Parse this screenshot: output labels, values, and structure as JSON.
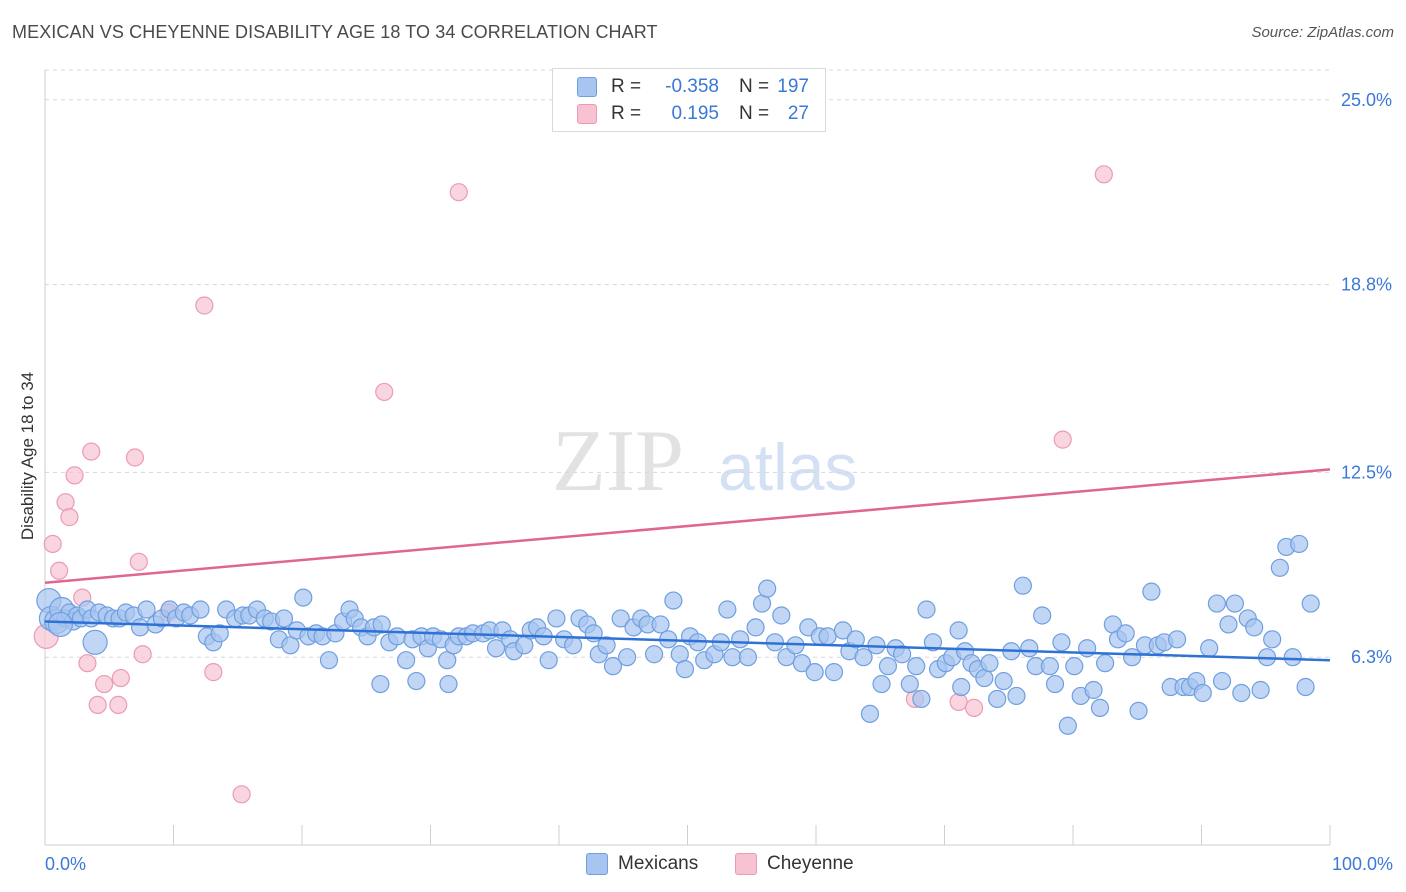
{
  "header": {
    "title": "MEXICAN VS CHEYENNE DISABILITY AGE 18 TO 34 CORRELATION CHART",
    "source": "Source: ZipAtlas.com"
  },
  "watermark": {
    "part1": "ZIP",
    "part2": "atlas"
  },
  "stats": {
    "mexicans": {
      "r_label": "R =",
      "r_value": "-0.358",
      "n_label": "N =",
      "n_value": "197"
    },
    "cheyenne": {
      "r_label": "R =",
      "r_value": "0.195",
      "n_label": "N =",
      "n_value": "27"
    }
  },
  "legend": {
    "mexicans": "Mexicans",
    "cheyenne": "Cheyenne"
  },
  "colors": {
    "mexicans_fill": "#a7c5f0",
    "mexicans_stroke": "#6f9fe0",
    "mexicans_line": "#2f72d6",
    "cheyenne_fill": "#f7c3d3",
    "cheyenne_stroke": "#ec9ab5",
    "cheyenne_line": "#e0658f",
    "tick_label": "#3b78d8",
    "grid": "#d8d8d8"
  },
  "chart_data": {
    "type": "scatter",
    "title": "MEXICAN VS CHEYENNE DISABILITY AGE 18 TO 34 CORRELATION CHART",
    "xlabel": "",
    "ylabel": "Disability Age 18 to 34",
    "xlim": [
      0,
      100
    ],
    "ylim": [
      0,
      26
    ],
    "x_tick_labels": [
      "0.0%",
      "100.0%"
    ],
    "x_tick_positions": [
      0,
      10,
      20,
      30,
      40,
      50,
      60,
      70,
      80,
      90,
      100
    ],
    "y_ticks": [
      6.3,
      12.5,
      18.8,
      25.0
    ],
    "y_tick_labels": [
      "6.3%",
      "12.5%",
      "18.8%",
      "25.0%"
    ],
    "grid": "horizontal dashed",
    "series": [
      {
        "name": "Mexicans",
        "trend": {
          "x": [
            0,
            100
          ],
          "y": [
            7.5,
            6.2
          ]
        },
        "points": [
          [
            0.3,
            8.2
          ],
          [
            0.5,
            7.6
          ],
          [
            0.9,
            7.5
          ],
          [
            1.3,
            7.9
          ],
          [
            1.6,
            7.6
          ],
          [
            1.9,
            7.8
          ],
          [
            2.2,
            7.5
          ],
          [
            2.5,
            7.7
          ],
          [
            2.8,
            7.6
          ],
          [
            3.3,
            7.9
          ],
          [
            3.6,
            7.6
          ],
          [
            4.2,
            7.8
          ],
          [
            4.8,
            7.7
          ],
          [
            5.3,
            7.6
          ],
          [
            5.8,
            7.6
          ],
          [
            6.3,
            7.8
          ],
          [
            6.9,
            7.7
          ],
          [
            7.4,
            7.3
          ],
          [
            7.9,
            7.9
          ],
          [
            8.6,
            7.4
          ],
          [
            9.1,
            7.6
          ],
          [
            9.7,
            7.9
          ],
          [
            10.2,
            7.6
          ],
          [
            10.8,
            7.8
          ],
          [
            11.3,
            7.7
          ],
          [
            12.1,
            7.9
          ],
          [
            12.6,
            7.0
          ],
          [
            13.1,
            6.8
          ],
          [
            13.6,
            7.1
          ],
          [
            14.1,
            7.9
          ],
          [
            14.8,
            7.6
          ],
          [
            15.4,
            7.7
          ],
          [
            15.9,
            7.7
          ],
          [
            16.5,
            7.9
          ],
          [
            17.1,
            7.6
          ],
          [
            17.6,
            7.5
          ],
          [
            18.2,
            6.9
          ],
          [
            18.6,
            7.6
          ],
          [
            19.1,
            6.7
          ],
          [
            19.6,
            7.2
          ],
          [
            20.1,
            8.3
          ],
          [
            20.5,
            7.0
          ],
          [
            21.1,
            7.1
          ],
          [
            21.6,
            7.0
          ],
          [
            22.1,
            6.2
          ],
          [
            22.6,
            7.1
          ],
          [
            23.2,
            7.5
          ],
          [
            23.7,
            7.9
          ],
          [
            24.1,
            7.6
          ],
          [
            24.6,
            7.3
          ],
          [
            25.1,
            7.0
          ],
          [
            25.6,
            7.3
          ],
          [
            26.2,
            7.4
          ],
          [
            26.1,
            5.4
          ],
          [
            26.8,
            6.8
          ],
          [
            27.4,
            7.0
          ],
          [
            28.1,
            6.2
          ],
          [
            28.6,
            6.9
          ],
          [
            28.9,
            5.5
          ],
          [
            29.3,
            7.0
          ],
          [
            29.8,
            6.6
          ],
          [
            30.2,
            7.0
          ],
          [
            30.8,
            6.9
          ],
          [
            31.3,
            6.2
          ],
          [
            31.8,
            6.7
          ],
          [
            32.2,
            7.0
          ],
          [
            31.4,
            5.4
          ],
          [
            32.8,
            7.0
          ],
          [
            33.3,
            7.1
          ],
          [
            34.1,
            7.1
          ],
          [
            34.6,
            7.2
          ],
          [
            35.1,
            6.6
          ],
          [
            35.6,
            7.2
          ],
          [
            36.2,
            6.9
          ],
          [
            36.5,
            6.5
          ],
          [
            37.3,
            6.7
          ],
          [
            37.8,
            7.2
          ],
          [
            38.3,
            7.3
          ],
          [
            38.8,
            7.0
          ],
          [
            39.2,
            6.2
          ],
          [
            39.8,
            7.6
          ],
          [
            40.4,
            6.9
          ],
          [
            41.1,
            6.7
          ],
          [
            41.6,
            7.6
          ],
          [
            42.2,
            7.4
          ],
          [
            42.7,
            7.1
          ],
          [
            43.1,
            6.4
          ],
          [
            43.7,
            6.7
          ],
          [
            44.2,
            6.0
          ],
          [
            44.8,
            7.6
          ],
          [
            45.3,
            6.3
          ],
          [
            45.8,
            7.3
          ],
          [
            46.4,
            7.6
          ],
          [
            46.9,
            7.4
          ],
          [
            47.4,
            6.4
          ],
          [
            47.9,
            7.4
          ],
          [
            48.5,
            6.9
          ],
          [
            48.9,
            8.2
          ],
          [
            49.4,
            6.4
          ],
          [
            49.8,
            5.9
          ],
          [
            50.2,
            7.0
          ],
          [
            50.8,
            6.8
          ],
          [
            51.3,
            6.2
          ],
          [
            52.1,
            6.4
          ],
          [
            52.6,
            6.8
          ],
          [
            53.1,
            7.9
          ],
          [
            53.5,
            6.3
          ],
          [
            54.1,
            6.9
          ],
          [
            54.7,
            6.3
          ],
          [
            55.3,
            7.3
          ],
          [
            55.8,
            8.1
          ],
          [
            56.2,
            8.6
          ],
          [
            56.8,
            6.8
          ],
          [
            57.3,
            7.7
          ],
          [
            57.7,
            6.3
          ],
          [
            58.4,
            6.7
          ],
          [
            58.9,
            6.1
          ],
          [
            59.4,
            7.3
          ],
          [
            59.9,
            5.8
          ],
          [
            60.3,
            7.0
          ],
          [
            60.9,
            7.0
          ],
          [
            61.4,
            5.8
          ],
          [
            62.1,
            7.2
          ],
          [
            62.6,
            6.5
          ],
          [
            63.1,
            6.9
          ],
          [
            63.7,
            6.3
          ],
          [
            64.2,
            4.4
          ],
          [
            64.7,
            6.7
          ],
          [
            65.1,
            5.4
          ],
          [
            65.6,
            6.0
          ],
          [
            66.2,
            6.6
          ],
          [
            66.7,
            6.4
          ],
          [
            67.3,
            5.4
          ],
          [
            67.8,
            6.0
          ],
          [
            68.2,
            4.9
          ],
          [
            68.6,
            7.9
          ],
          [
            69.1,
            6.8
          ],
          [
            69.5,
            5.9
          ],
          [
            70.1,
            6.1
          ],
          [
            70.6,
            6.3
          ],
          [
            71.1,
            7.2
          ],
          [
            71.6,
            6.5
          ],
          [
            71.3,
            5.3
          ],
          [
            72.1,
            6.1
          ],
          [
            72.6,
            5.9
          ],
          [
            73.1,
            5.6
          ],
          [
            73.5,
            6.1
          ],
          [
            74.1,
            4.9
          ],
          [
            74.6,
            5.5
          ],
          [
            75.2,
            6.5
          ],
          [
            75.6,
            5.0
          ],
          [
            76.1,
            8.7
          ],
          [
            76.6,
            6.6
          ],
          [
            77.1,
            6.0
          ],
          [
            77.6,
            7.7
          ],
          [
            78.2,
            6.0
          ],
          [
            78.6,
            5.4
          ],
          [
            79.1,
            6.8
          ],
          [
            79.6,
            4.0
          ],
          [
            80.1,
            6.0
          ],
          [
            80.6,
            5.0
          ],
          [
            81.1,
            6.6
          ],
          [
            81.6,
            5.2
          ],
          [
            82.1,
            4.6
          ],
          [
            82.5,
            6.1
          ],
          [
            83.1,
            7.4
          ],
          [
            83.5,
            6.9
          ],
          [
            84.1,
            7.1
          ],
          [
            84.6,
            6.3
          ],
          [
            85.1,
            4.5
          ],
          [
            85.6,
            6.7
          ],
          [
            86.1,
            8.5
          ],
          [
            86.6,
            6.7
          ],
          [
            87.1,
            6.8
          ],
          [
            87.6,
            5.3
          ],
          [
            88.1,
            6.9
          ],
          [
            88.6,
            5.3
          ],
          [
            89.1,
            5.3
          ],
          [
            89.6,
            5.5
          ],
          [
            90.1,
            5.1
          ],
          [
            90.6,
            6.6
          ],
          [
            91.2,
            8.1
          ],
          [
            91.6,
            5.5
          ],
          [
            92.1,
            7.4
          ],
          [
            92.6,
            8.1
          ],
          [
            93.1,
            5.1
          ],
          [
            93.6,
            7.6
          ],
          [
            94.1,
            7.3
          ],
          [
            94.6,
            5.2
          ],
          [
            95.1,
            6.3
          ],
          [
            95.5,
            6.9
          ],
          [
            96.1,
            9.3
          ],
          [
            96.6,
            10.0
          ],
          [
            97.1,
            6.3
          ],
          [
            97.6,
            10.1
          ],
          [
            98.1,
            5.3
          ],
          [
            98.5,
            8.1
          ],
          [
            1.2,
            7.4
          ],
          [
            3.9,
            6.8
          ]
        ]
      },
      {
        "name": "Cheyenne",
        "trend": {
          "x": [
            0,
            100
          ],
          "y": [
            8.8,
            12.6
          ]
        },
        "points": [
          [
            0.1,
            7.0
          ],
          [
            0.6,
            10.1
          ],
          [
            1.1,
            9.2
          ],
          [
            1.6,
            11.5
          ],
          [
            1.9,
            11.0
          ],
          [
            2.3,
            12.4
          ],
          [
            2.9,
            8.3
          ],
          [
            3.3,
            6.1
          ],
          [
            3.6,
            13.2
          ],
          [
            4.1,
            4.7
          ],
          [
            4.6,
            5.4
          ],
          [
            5.7,
            4.7
          ],
          [
            5.9,
            5.6
          ],
          [
            7.0,
            13.0
          ],
          [
            7.3,
            9.5
          ],
          [
            7.6,
            6.4
          ],
          [
            9.6,
            7.8
          ],
          [
            12.4,
            18.1
          ],
          [
            13.1,
            5.8
          ],
          [
            15.3,
            1.7
          ],
          [
            26.4,
            15.2
          ],
          [
            32.2,
            21.9
          ],
          [
            67.7,
            4.9
          ],
          [
            71.1,
            4.8
          ],
          [
            72.3,
            4.6
          ],
          [
            79.2,
            13.6
          ],
          [
            82.4,
            22.5
          ]
        ]
      }
    ]
  }
}
